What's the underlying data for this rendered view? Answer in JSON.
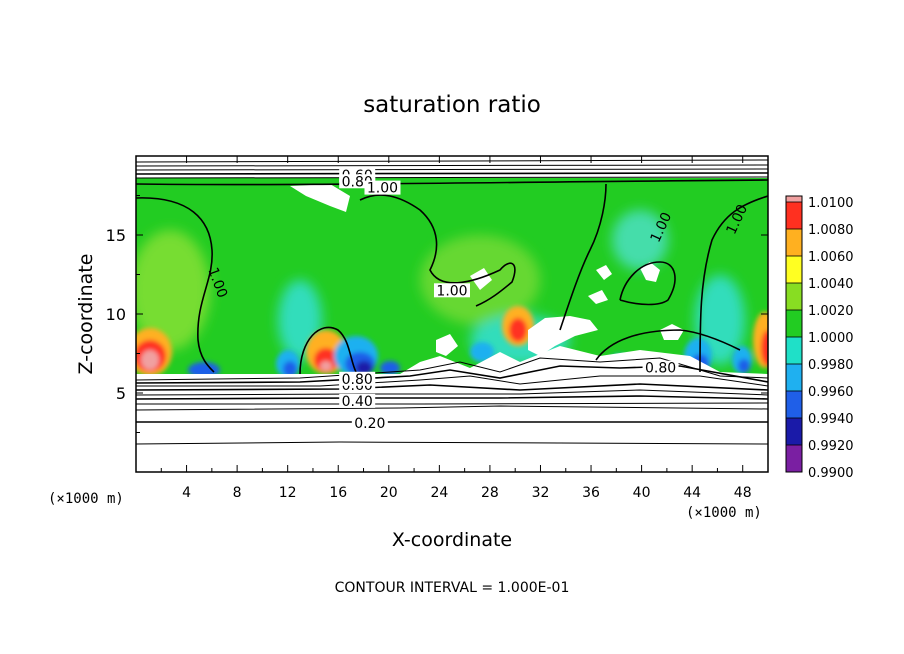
{
  "chart_data": {
    "type": "heatmap",
    "title": "saturation ratio",
    "xlabel": "X-coordinate",
    "ylabel": "Z-coordinate",
    "x_unit_label": "(×1000 m)",
    "y_unit_label": "(×1000 m)",
    "x_ticks": [
      4,
      8,
      12,
      16,
      20,
      24,
      28,
      32,
      36,
      40,
      44,
      48
    ],
    "y_ticks": [
      5,
      10,
      15
    ],
    "xlim": [
      0,
      50
    ],
    "ylim": [
      0,
      20
    ],
    "colorbar": {
      "levels": [
        0.99,
        0.992,
        0.994,
        0.996,
        0.998,
        1.0,
        1.002,
        1.004,
        1.006,
        1.008,
        1.01
      ],
      "tick_labels": [
        "0.9900",
        "0.9920",
        "0.9940",
        "0.9960",
        "0.9980",
        "1.0000",
        "1.0020",
        "1.0040",
        "1.0060",
        "1.0080",
        "1.0100"
      ],
      "colors": [
        "#7a1fa2",
        "#1a1aa8",
        "#1f5fe8",
        "#1fb0f0",
        "#1fe0c8",
        "#22cc22",
        "#88dd22",
        "#ffff22",
        "#ffb020",
        "#ff3020",
        "#f0a0a0"
      ]
    },
    "contour_labels": [
      {
        "text": "0.20",
        "x": 18.5,
        "z": 3.1
      },
      {
        "text": "0.40",
        "x": 17.5,
        "z": 4.5
      },
      {
        "text": "0.60",
        "x": 17.5,
        "z": 5.5
      },
      {
        "text": "0.80",
        "x": 17.5,
        "z": 5.9
      },
      {
        "text": "0.80",
        "x": 41.5,
        "z": 6.6
      },
      {
        "text": "0.60",
        "x": 17.5,
        "z": 18.8
      },
      {
        "text": "0.80",
        "x": 17.5,
        "z": 18.4
      },
      {
        "text": "1.00",
        "x": 19.5,
        "z": 18.0
      },
      {
        "text": "1.00",
        "x": 6.5,
        "z": 12.0
      },
      {
        "text": "1.00",
        "x": 41.5,
        "z": 15.5
      },
      {
        "text": "1.00",
        "x": 47.5,
        "z": 16.0
      },
      {
        "text": "1.00",
        "x": 25.0,
        "z": 11.5
      }
    ],
    "annotation": "CONTOUR INTERVAL = 1.000E-01"
  }
}
